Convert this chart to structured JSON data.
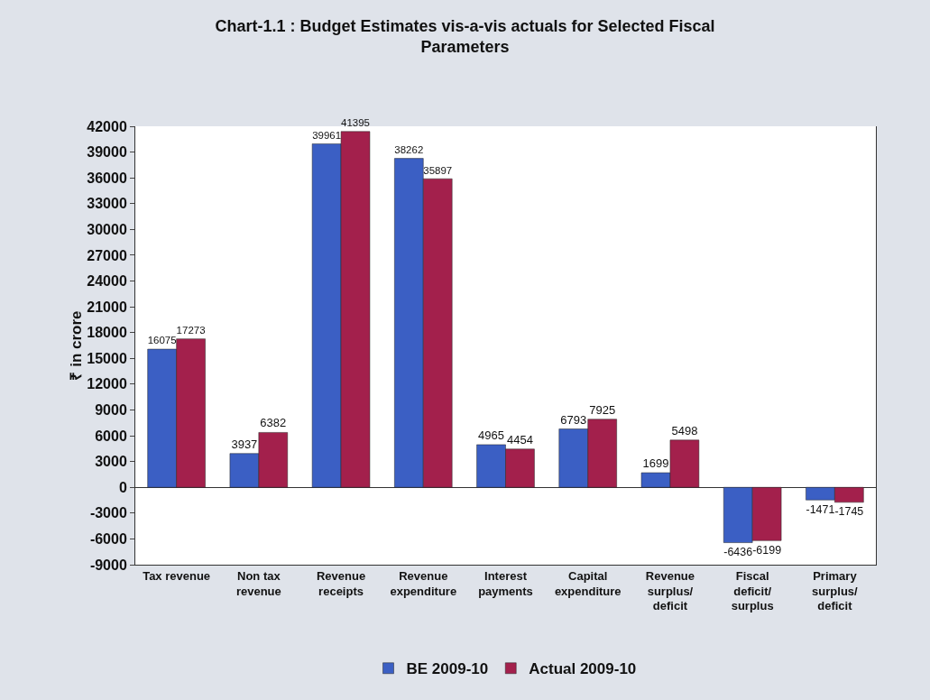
{
  "chart_data": {
    "type": "bar",
    "title": "Chart-1.1 : Budget Estimates vis-a-vis actuals for Selected Fiscal Parameters",
    "ylabel": "₹ in crore",
    "categories": [
      "Tax revenue",
      "Non tax revenue",
      "Revenue receipts",
      "Revenue expenditure",
      "Interest payments",
      "Capital expenditure",
      "Revenue surplus/ deficit",
      "Fiscal deficit/ surplus",
      "Primary surplus/ deficit"
    ],
    "series": [
      {
        "name": "BE 2009-10",
        "color": "#3b5fc4",
        "values": [
          16075,
          3937,
          39961,
          38262,
          4965,
          6793,
          1699,
          -6436,
          -1471
        ]
      },
      {
        "name": "Actual 2009-10",
        "color": "#a3204c",
        "values": [
          17273,
          6382,
          41395,
          35897,
          4454,
          7925,
          5498,
          -6199,
          -1745
        ]
      }
    ],
    "ylim": [
      -9000,
      42000
    ],
    "yticks": [
      -9000,
      -6000,
      -3000,
      0,
      3000,
      6000,
      9000,
      12000,
      15000,
      18000,
      21000,
      24000,
      27000,
      30000,
      33000,
      36000,
      39000,
      42000
    ],
    "data_labels": true,
    "legend": "bottom"
  }
}
